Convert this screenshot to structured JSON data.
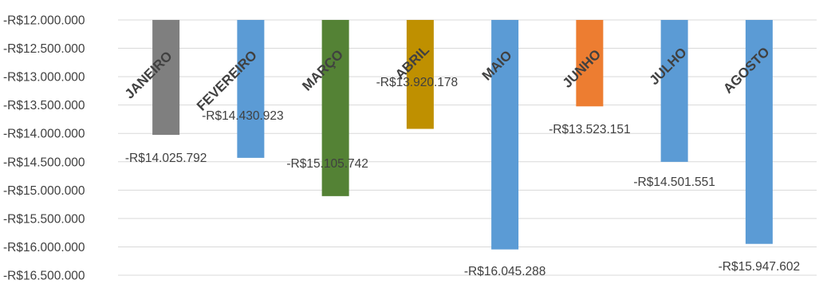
{
  "chart_data": {
    "type": "bar",
    "title": "",
    "xlabel": "",
    "ylabel": "",
    "ylim": [
      -16500000,
      -12000000
    ],
    "grid": true,
    "legend": "none",
    "y_ticks": [
      -12000000,
      -12500000,
      -13000000,
      -13500000,
      -14000000,
      -14500000,
      -15000000,
      -15500000,
      -16000000,
      -16500000
    ],
    "y_tick_labels": [
      "-R$12.000.000",
      "-R$12.500.000",
      "-R$13.000.000",
      "-R$13.500.000",
      "-R$14.000.000",
      "-R$14.500.000",
      "-R$15.000.000",
      "-R$15.500.000",
      "-R$16.000.000",
      "-R$16.500.000"
    ],
    "categories": [
      "JANEIRO",
      "FEVEREIRO",
      "MARÇO",
      "ABRIL",
      "MAIO",
      "JUNHO",
      "JULHO",
      "AGOSTO"
    ],
    "values": [
      -14025792,
      -14430923,
      -15105742,
      -13920178,
      -16045288,
      -13523151,
      -14501551,
      -15947602
    ],
    "value_labels": [
      "-R$14.025.792",
      "-R$14.430.923",
      "-R$15.105.742",
      "-R$13.920.178",
      "-R$16.045.288",
      "-R$13.523.151",
      "-R$14.501.551",
      "-R$15.947.602"
    ],
    "colors": [
      "#7f7f7f",
      "#5b9bd5",
      "#548235",
      "#bf9000",
      "#5b9bd5",
      "#ed7d31",
      "#5b9bd5",
      "#5b9bd5"
    ]
  }
}
